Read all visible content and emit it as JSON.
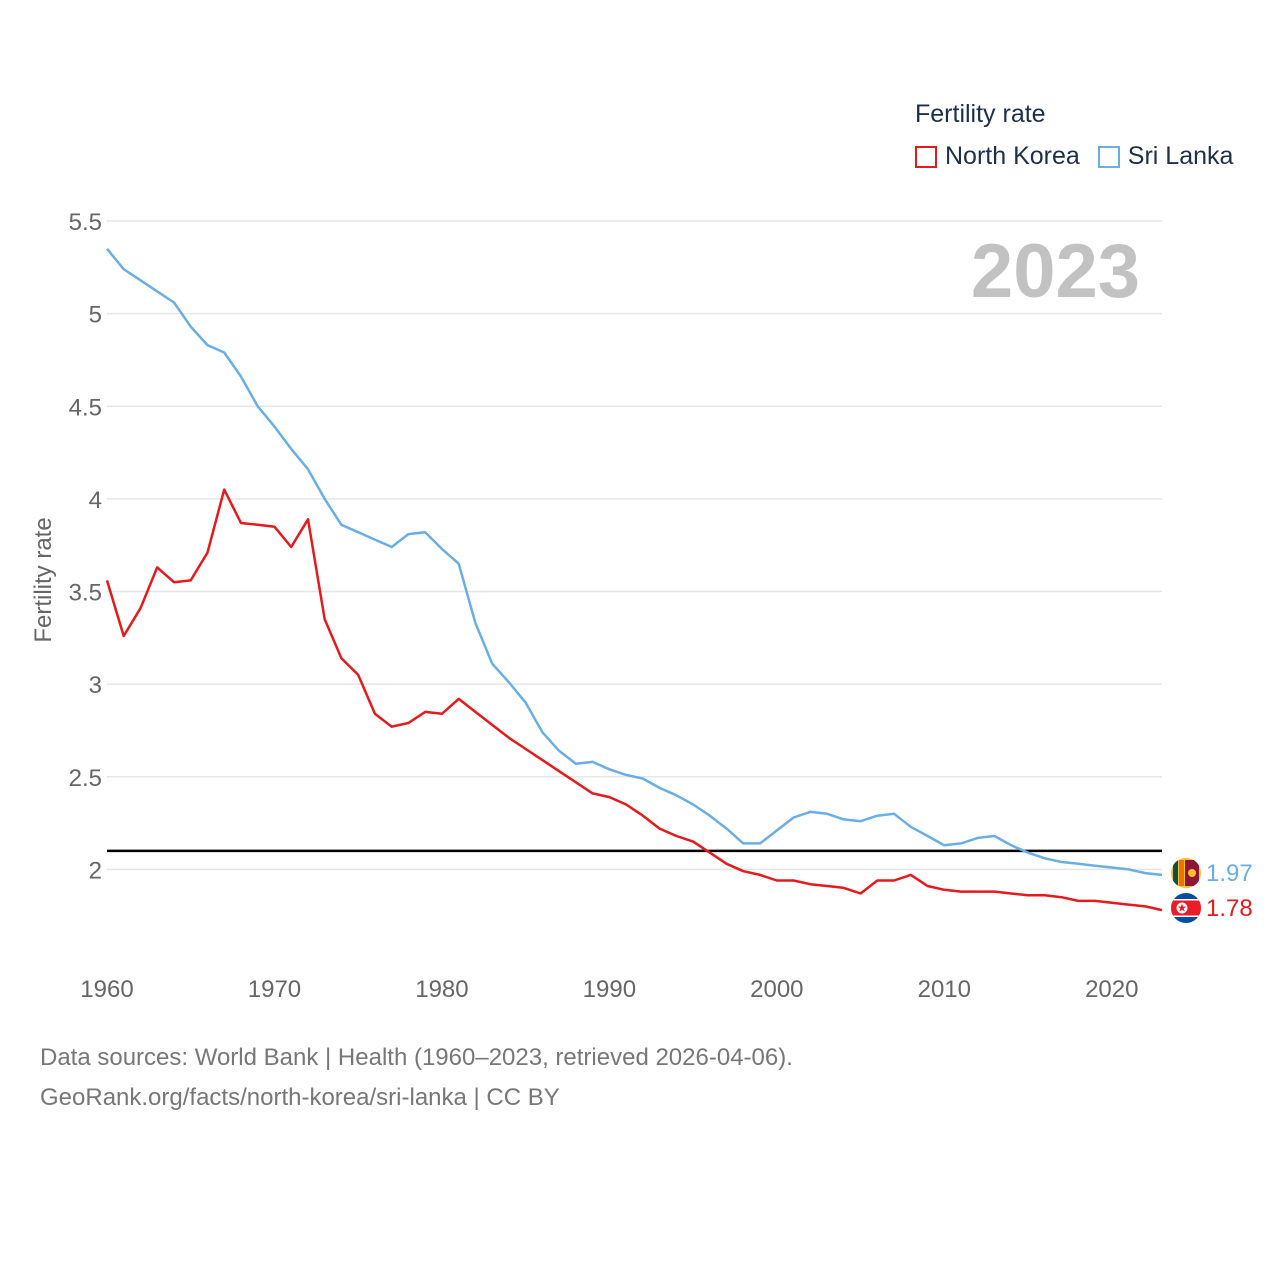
{
  "chart_data": {
    "type": "line",
    "legend_title": "Fertility rate",
    "ylabel": "Fertility rate",
    "xlabel": "",
    "ylim": [
      1.5,
      5.5
    ],
    "xlim": [
      1960,
      2023
    ],
    "yticks": [
      2,
      2.5,
      3,
      3.5,
      4,
      4.5,
      5,
      5.5
    ],
    "ytick_labels": [
      "2",
      "2.5",
      "3",
      "3.5",
      "4",
      "4.5",
      "5",
      "5.5"
    ],
    "xticks": [
      1960,
      1970,
      1980,
      1990,
      2000,
      2010,
      2020
    ],
    "xtick_labels": [
      "1960",
      "1970",
      "1980",
      "1990",
      "2000",
      "2010",
      "2020"
    ],
    "reference_line": 2.1,
    "year_label": "2023",
    "x": [
      1960,
      1961,
      1962,
      1963,
      1964,
      1965,
      1966,
      1967,
      1968,
      1969,
      1970,
      1971,
      1972,
      1973,
      1974,
      1975,
      1976,
      1977,
      1978,
      1979,
      1980,
      1981,
      1982,
      1983,
      1984,
      1985,
      1986,
      1987,
      1988,
      1989,
      1990,
      1991,
      1992,
      1993,
      1994,
      1995,
      1996,
      1997,
      1998,
      1999,
      2000,
      2001,
      2002,
      2003,
      2004,
      2005,
      2006,
      2007,
      2008,
      2009,
      2010,
      2011,
      2012,
      2013,
      2014,
      2015,
      2016,
      2017,
      2018,
      2019,
      2020,
      2021,
      2022,
      2023
    ],
    "series": [
      {
        "name": "North Korea",
        "color": "#e41a1c",
        "end_label": "1.78",
        "values": [
          3.56,
          3.26,
          3.41,
          3.63,
          3.55,
          3.56,
          3.71,
          4.05,
          3.87,
          3.86,
          3.85,
          3.74,
          3.89,
          3.35,
          3.14,
          3.05,
          2.84,
          2.77,
          2.79,
          2.85,
          2.84,
          2.92,
          2.85,
          2.78,
          2.71,
          2.65,
          2.59,
          2.53,
          2.47,
          2.41,
          2.39,
          2.35,
          2.29,
          2.22,
          2.18,
          2.15,
          2.09,
          2.03,
          1.99,
          1.97,
          1.94,
          1.94,
          1.92,
          1.91,
          1.9,
          1.87,
          1.94,
          1.94,
          1.97,
          1.91,
          1.89,
          1.88,
          1.88,
          1.88,
          1.87,
          1.86,
          1.86,
          1.85,
          1.83,
          1.83,
          1.82,
          1.81,
          1.8,
          1.78
        ]
      },
      {
        "name": "Sri Lanka",
        "color": "#6aaee6",
        "end_label": "1.97",
        "values": [
          5.35,
          5.24,
          5.18,
          5.12,
          5.06,
          4.93,
          4.83,
          4.79,
          4.66,
          4.5,
          4.39,
          4.27,
          4.16,
          4.0,
          3.86,
          3.82,
          3.78,
          3.74,
          3.81,
          3.82,
          3.73,
          3.65,
          3.33,
          3.11,
          3.01,
          2.9,
          2.74,
          2.64,
          2.57,
          2.58,
          2.54,
          2.51,
          2.49,
          2.44,
          2.4,
          2.35,
          2.29,
          2.22,
          2.14,
          2.14,
          2.21,
          2.28,
          2.31,
          2.3,
          2.27,
          2.26,
          2.29,
          2.3,
          2.23,
          2.18,
          2.13,
          2.14,
          2.17,
          2.18,
          2.13,
          2.09,
          2.06,
          2.04,
          2.03,
          2.02,
          2.01,
          2.0,
          1.98,
          1.97
        ]
      }
    ]
  },
  "footer": {
    "line1": "Data sources: World Bank | Health (1960–2023, retrieved 2026-04-06).",
    "line2": "GeoRank.org/facts/north-korea/sri-lanka | CC BY"
  },
  "colors": {
    "grid": "#e6e6e6",
    "tick_text": "#666666",
    "reference": "#000000"
  },
  "icons": [
    "sri-lanka-flag-icon",
    "north-korea-flag-icon"
  ]
}
